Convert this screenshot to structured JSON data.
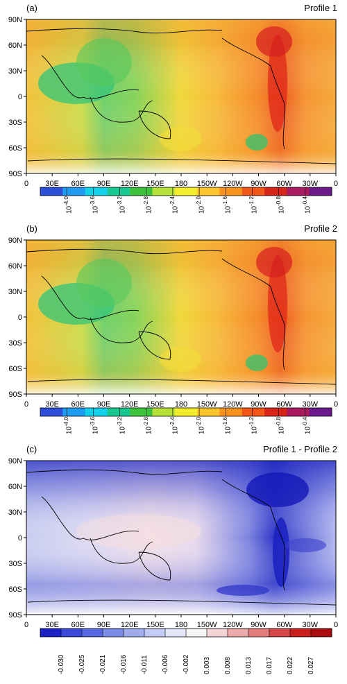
{
  "panels": [
    {
      "letter": "(a)",
      "title": "Profile 1",
      "kind": "log"
    },
    {
      "letter": "(b)",
      "title": "Profile 2",
      "kind": "log"
    },
    {
      "letter": "(c)",
      "title": "Profile 1 - Profile 2",
      "kind": "diff"
    }
  ],
  "lat_labels": [
    "90N",
    "60N",
    "30N",
    "0",
    "30S",
    "60S",
    "90S"
  ],
  "lon_labels": [
    "0",
    "30E",
    "60E",
    "90E",
    "120E",
    "150E",
    "180",
    "150W",
    "120W",
    "90W",
    "60W",
    "30W",
    "0"
  ],
  "log_colorbar": {
    "labels": [
      "10-4.0",
      "10-3.6",
      "10-3.2",
      "10-2.8",
      "10-2.4",
      "10-2.0",
      "10-1.6",
      "10-1.2",
      "10-0.8",
      "10-0.4"
    ],
    "exponents": [
      "-4.0",
      "-3.6",
      "-3.2",
      "-2.8",
      "-2.4",
      "-2.0",
      "-1.6",
      "-1.2",
      "-0.8",
      "-0.4"
    ],
    "colors": [
      "#2d4fd8",
      "#1f9bf0",
      "#14d0e8",
      "#18c890",
      "#3cc23c",
      "#b8e03a",
      "#f2ee2e",
      "#fbc42c",
      "#f7921f",
      "#f2571a",
      "#d8251a",
      "#a81b5e",
      "#6b1a8c"
    ]
  },
  "diff_colorbar": {
    "labels": [
      "-0.030",
      "-0.025",
      "-0.021",
      "-0.016",
      "-0.011",
      "-0.006",
      "-0.002",
      "0.003",
      "0.008",
      "0.013",
      "0.017",
      "0.022",
      "0.027"
    ],
    "colors": [
      "#1c22c8",
      "#3a48d8",
      "#5a68e0",
      "#7c8ae6",
      "#a0acee",
      "#c2cbf3",
      "#e2e6f8",
      "#f6f3f3",
      "#f3d3d3",
      "#eeaaaa",
      "#e37c7c",
      "#d84848",
      "#c81e1e",
      "#aa0d0d"
    ]
  }
}
